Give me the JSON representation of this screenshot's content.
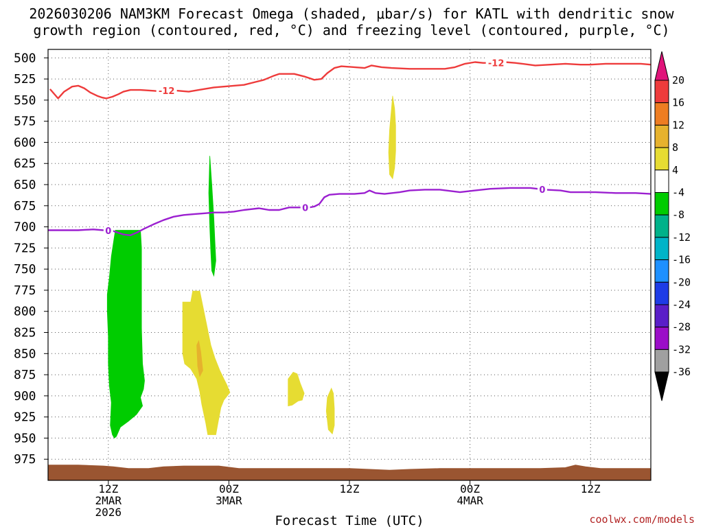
{
  "title": {
    "line1": "2026030206 NAM3KM Forecast Omega (shaded, μbar/s) for KATL with dendritic snow",
    "line2": "growth region (contoured, red, °C) and freezing level (contoured, purple, °C)"
  },
  "xlabel": "Forecast Time (UTC)",
  "credit": "coolwx.com/models",
  "chart_data": {
    "type": "time-height cross-section",
    "y_axis": {
      "label": "",
      "unit": "hPa",
      "range": [
        1000,
        490
      ],
      "inverted": true,
      "ticks": [
        500,
        525,
        550,
        575,
        600,
        625,
        650,
        675,
        700,
        725,
        750,
        775,
        800,
        825,
        850,
        875,
        900,
        925,
        950,
        975
      ]
    },
    "x_axis": {
      "unit": "forecast hour",
      "range": [
        6,
        66
      ],
      "ticks": [
        {
          "hour": 12,
          "lines": [
            "12Z",
            "2MAR",
            "2026"
          ]
        },
        {
          "hour": 24,
          "lines": [
            "00Z",
            "3MAR"
          ]
        },
        {
          "hour": 36,
          "lines": [
            "12Z"
          ]
        },
        {
          "hour": 48,
          "lines": [
            "00Z",
            "4MAR"
          ]
        },
        {
          "hour": 60,
          "lines": [
            "12Z"
          ]
        }
      ]
    },
    "grid": "dotted",
    "contours": [
      {
        "label": "-12",
        "color": "#ee3b3b",
        "points": [
          [
            6.2,
            537
          ],
          [
            7.0,
            548
          ],
          [
            7.6,
            540
          ],
          [
            8.4,
            534
          ],
          [
            9.0,
            533
          ],
          [
            9.6,
            536
          ],
          [
            10.2,
            541
          ],
          [
            10.9,
            545
          ],
          [
            11.4,
            547
          ],
          [
            11.8,
            548
          ],
          [
            12.4,
            546
          ],
          [
            13.0,
            543
          ],
          [
            13.5,
            540
          ],
          [
            14.2,
            538
          ],
          [
            15.2,
            538
          ],
          [
            16.5,
            539
          ],
          [
            17.5,
            540
          ],
          [
            18.0,
            538
          ],
          [
            19.0,
            539
          ],
          [
            20.0,
            540
          ],
          [
            21.0,
            538
          ],
          [
            22.5,
            535
          ],
          [
            23.5,
            534
          ],
          [
            24.5,
            533
          ],
          [
            25.5,
            532
          ],
          [
            26.5,
            529
          ],
          [
            27.5,
            526
          ],
          [
            28.5,
            521
          ],
          [
            29.0,
            519
          ],
          [
            30.5,
            519
          ],
          [
            31.5,
            522
          ],
          [
            32.5,
            526
          ],
          [
            33.2,
            525
          ],
          [
            33.8,
            518
          ],
          [
            34.5,
            512
          ],
          [
            35.2,
            510
          ],
          [
            36.5,
            511
          ],
          [
            37.5,
            512
          ],
          [
            38.2,
            509
          ],
          [
            39.2,
            511
          ],
          [
            40.2,
            512
          ],
          [
            42.0,
            513
          ],
          [
            44.0,
            513
          ],
          [
            45.5,
            513
          ],
          [
            46.5,
            511
          ],
          [
            47.5,
            507
          ],
          [
            48.5,
            505
          ],
          [
            49.3,
            506
          ],
          [
            50.8,
            506
          ],
          [
            51.5,
            505
          ],
          [
            52.5,
            506
          ],
          [
            53.2,
            507
          ],
          [
            54.5,
            509
          ],
          [
            56.0,
            508
          ],
          [
            57.5,
            507
          ],
          [
            59.0,
            508
          ],
          [
            60.0,
            508
          ],
          [
            61.5,
            507
          ],
          [
            63.5,
            507
          ],
          [
            65.0,
            507
          ],
          [
            66.0,
            508
          ]
        ],
        "label_at_hour": [
          17.8,
          50.6
        ]
      },
      {
        "label": "0",
        "color": "#9b1fd0",
        "points": [
          [
            6.0,
            704
          ],
          [
            7.5,
            704
          ],
          [
            9.0,
            704
          ],
          [
            10.5,
            703
          ],
          [
            11.5,
            704
          ],
          [
            12.5,
            705
          ],
          [
            13.5,
            709
          ],
          [
            14.2,
            710
          ],
          [
            14.8,
            707
          ],
          [
            15.6,
            702
          ],
          [
            16.5,
            697
          ],
          [
            17.5,
            692
          ],
          [
            18.5,
            688
          ],
          [
            19.5,
            686
          ],
          [
            20.5,
            685
          ],
          [
            21.5,
            684
          ],
          [
            22.5,
            683
          ],
          [
            23.5,
            683
          ],
          [
            24.5,
            682
          ],
          [
            25.5,
            680
          ],
          [
            26.3,
            679
          ],
          [
            27.0,
            678
          ],
          [
            28.0,
            680
          ],
          [
            29.0,
            680
          ],
          [
            30.0,
            677
          ],
          [
            31.0,
            677
          ],
          [
            32.0,
            677
          ],
          [
            32.5,
            676
          ],
          [
            33.0,
            673
          ],
          [
            33.5,
            665
          ],
          [
            34.0,
            662
          ],
          [
            35.0,
            661
          ],
          [
            36.5,
            661
          ],
          [
            37.5,
            660
          ],
          [
            38.0,
            657
          ],
          [
            38.6,
            660
          ],
          [
            39.5,
            661
          ],
          [
            41.0,
            659
          ],
          [
            42.0,
            657
          ],
          [
            43.5,
            656
          ],
          [
            45.0,
            656
          ],
          [
            47.0,
            659
          ],
          [
            48.5,
            657
          ],
          [
            50.0,
            655
          ],
          [
            52.0,
            654
          ],
          [
            54.0,
            654
          ],
          [
            55.5,
            656
          ],
          [
            57.0,
            657
          ],
          [
            58.0,
            659
          ],
          [
            59.0,
            659
          ],
          [
            60.5,
            659
          ],
          [
            62.5,
            660
          ],
          [
            64.5,
            660
          ],
          [
            66.0,
            661
          ]
        ],
        "label_at_hour": [
          12.0,
          31.6,
          55.2
        ]
      }
    ],
    "shaded_regions": [
      {
        "value_range": [
          -8,
          -4
        ],
        "color": "#00cc00",
        "polygon": [
          [
            12.7,
            704
          ],
          [
            15.2,
            704
          ],
          [
            15.3,
            725
          ],
          [
            15.3,
            770
          ],
          [
            15.3,
            820
          ],
          [
            15.4,
            862
          ],
          [
            15.6,
            882
          ],
          [
            15.5,
            892
          ],
          [
            15.2,
            902
          ],
          [
            15.4,
            912
          ],
          [
            14.8,
            922
          ],
          [
            14.0,
            930
          ],
          [
            13.2,
            937
          ],
          [
            12.8,
            948
          ],
          [
            12.6,
            950
          ],
          [
            12.4,
            946
          ],
          [
            12.2,
            935
          ],
          [
            12.3,
            908
          ],
          [
            12.1,
            888
          ],
          [
            12.0,
            862
          ],
          [
            12.0,
            830
          ],
          [
            11.9,
            800
          ],
          [
            11.9,
            780
          ],
          [
            12.1,
            760
          ],
          [
            12.3,
            735
          ]
        ]
      },
      {
        "value_range": [
          -8,
          -4
        ],
        "color": "#00cc00",
        "polygon": [
          [
            22.1,
            616
          ],
          [
            22.3,
            650
          ],
          [
            22.5,
            690
          ],
          [
            22.6,
            715
          ],
          [
            22.7,
            740
          ],
          [
            22.5,
            758
          ],
          [
            22.3,
            752
          ],
          [
            22.2,
            730
          ],
          [
            22.1,
            700
          ],
          [
            22.0,
            660
          ]
        ]
      },
      {
        "value_range": [
          4,
          8
        ],
        "color": "#e6dc32",
        "polygon": [
          [
            19.4,
            789
          ],
          [
            20.2,
            789
          ],
          [
            20.4,
            776
          ],
          [
            21.1,
            776
          ],
          [
            21.6,
            805
          ],
          [
            22.2,
            840
          ],
          [
            22.6,
            855
          ],
          [
            23.1,
            870
          ],
          [
            23.5,
            880
          ],
          [
            23.8,
            887
          ],
          [
            24.1,
            896
          ],
          [
            23.5,
            905
          ],
          [
            23.2,
            914
          ],
          [
            22.9,
            933
          ],
          [
            22.7,
            946
          ],
          [
            21.9,
            946
          ],
          [
            21.7,
            932
          ],
          [
            21.3,
            910
          ],
          [
            21.1,
            895
          ],
          [
            20.8,
            880
          ],
          [
            20.2,
            868
          ],
          [
            19.6,
            862
          ],
          [
            19.4,
            850
          ]
        ]
      },
      {
        "value_range": [
          8,
          12
        ],
        "color": "#e6b22d",
        "polygon": [
          [
            20.8,
            840
          ],
          [
            21.0,
            835
          ],
          [
            21.2,
            848
          ],
          [
            21.4,
            870
          ],
          [
            21.1,
            877
          ],
          [
            20.9,
            865
          ]
        ]
      },
      {
        "value_range": [
          4,
          8
        ],
        "color": "#e6dc32",
        "polygon": [
          [
            29.9,
            880
          ],
          [
            30.4,
            872
          ],
          [
            30.8,
            874
          ],
          [
            31.1,
            885
          ],
          [
            31.5,
            897
          ],
          [
            31.3,
            905
          ],
          [
            30.9,
            906
          ],
          [
            30.3,
            911
          ],
          [
            29.9,
            912
          ]
        ]
      },
      {
        "value_range": [
          4,
          8
        ],
        "color": "#e6dc32",
        "polygon": [
          [
            33.8,
            902
          ],
          [
            34.2,
            891
          ],
          [
            34.4,
            897
          ],
          [
            34.5,
            915
          ],
          [
            34.5,
            935
          ],
          [
            34.3,
            945
          ],
          [
            33.9,
            940
          ],
          [
            33.7,
            918
          ]
        ]
      },
      {
        "value_range": [
          4,
          8
        ],
        "color": "#e6dc32",
        "polygon": [
          [
            40.0,
            585
          ],
          [
            40.3,
            545
          ],
          [
            40.5,
            560
          ],
          [
            40.6,
            580
          ],
          [
            40.6,
            610
          ],
          [
            40.5,
            630
          ],
          [
            40.3,
            643
          ],
          [
            40.0,
            638
          ],
          [
            39.9,
            612
          ]
        ]
      }
    ],
    "terrain": {
      "color": "#9a5531",
      "points": [
        [
          6,
          982
        ],
        [
          9,
          982
        ],
        [
          11.5,
          983
        ],
        [
          12.5,
          984
        ],
        [
          14,
          986
        ],
        [
          16,
          986
        ],
        [
          17.5,
          984
        ],
        [
          19.5,
          983
        ],
        [
          23,
          983
        ],
        [
          25,
          986
        ],
        [
          28,
          986
        ],
        [
          31,
          986
        ],
        [
          36,
          986
        ],
        [
          38,
          987
        ],
        [
          40,
          988
        ],
        [
          42,
          987
        ],
        [
          45,
          986
        ],
        [
          50,
          986
        ],
        [
          53,
          986
        ],
        [
          55,
          986
        ],
        [
          57.5,
          985
        ],
        [
          58.5,
          982
        ],
        [
          59.5,
          984
        ],
        [
          61,
          986
        ],
        [
          64,
          986
        ],
        [
          66,
          986
        ]
      ]
    },
    "colorbar": {
      "unit": "μbar/s",
      "tick_labels": [
        "20",
        "16",
        "12",
        "8",
        "4",
        "-4",
        "-8",
        "-12",
        "-16",
        "-20",
        "-24",
        "-28",
        "-32",
        "-36"
      ],
      "top_triangle_color": "#e0147a",
      "bottom_triangle_color": "#000000",
      "segments": [
        {
          "from": 16,
          "to": 20,
          "color": "#ee3b3b"
        },
        {
          "from": 12,
          "to": 16,
          "color": "#ee7d22"
        },
        {
          "from": 8,
          "to": 12,
          "color": "#e6b22d"
        },
        {
          "from": 4,
          "to": 8,
          "color": "#e6dc32"
        },
        {
          "from": -4,
          "to": 4,
          "color": "#ffffff"
        },
        {
          "from": -8,
          "to": -4,
          "color": "#00cc00"
        },
        {
          "from": -12,
          "to": -8,
          "color": "#00b28a"
        },
        {
          "from": -16,
          "to": -12,
          "color": "#00b4c8"
        },
        {
          "from": -20,
          "to": -16,
          "color": "#1e90ff"
        },
        {
          "from": -24,
          "to": -20,
          "color": "#1e3ce6"
        },
        {
          "from": -28,
          "to": -24,
          "color": "#5a1ec8"
        },
        {
          "from": -32,
          "to": -28,
          "color": "#9b0ec8"
        },
        {
          "from": -36,
          "to": -32,
          "color": "#a0a0a0"
        }
      ]
    }
  }
}
